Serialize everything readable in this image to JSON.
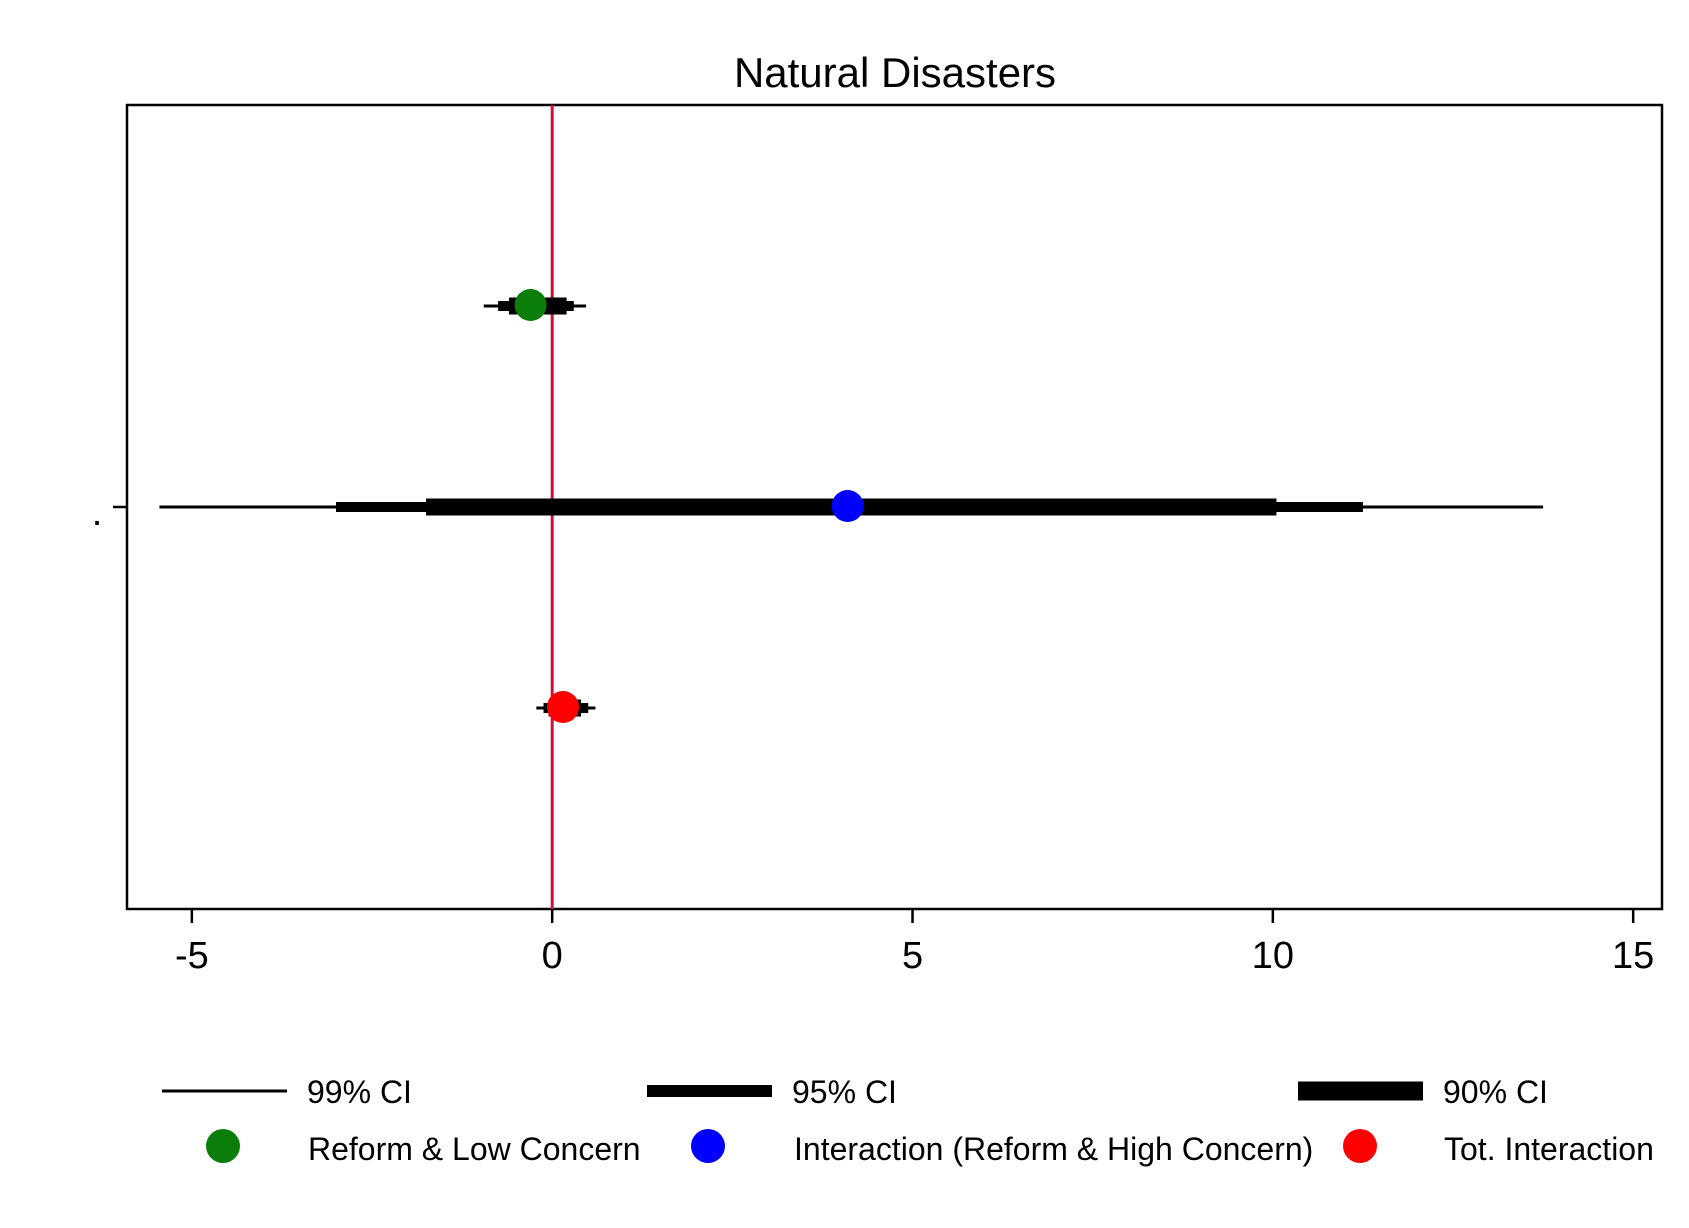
{
  "chart_data": {
    "type": "coefficient-plot",
    "title": "Natural Disasters",
    "xlabel": "",
    "ylabel": "",
    "xlim": [
      -5.9,
      15.4
    ],
    "xticks": [
      -5,
      0,
      5,
      10,
      15
    ],
    "xtick_labels": [
      "-5",
      "0",
      "5",
      "10",
      "15"
    ],
    "ytick_labels": [
      "."
    ],
    "reference_line": {
      "x": 0,
      "color": "#d0103a"
    },
    "grid": false,
    "legend_position": "bottom",
    "legend": {
      "ci": [
        {
          "label": "99% CI",
          "weight": "thin"
        },
        {
          "label": "95% CI",
          "weight": "medium"
        },
        {
          "label": "90% CI",
          "weight": "thick"
        }
      ],
      "markers": [
        {
          "label": "Reform & Low Concern",
          "color": "#0a7d0a"
        },
        {
          "label": "Interaction (Reform & High Concern)",
          "color": "#0000ff"
        },
        {
          "label": "Tot. Interaction",
          "color": "#ff0000"
        }
      ]
    },
    "series": [
      {
        "name": "Reform & Low Concern",
        "estimate": -0.3,
        "ci90": [
          -0.6,
          0.2
        ],
        "ci95": [
          -0.75,
          0.3
        ],
        "ci99": [
          -0.95,
          0.47
        ],
        "color": "#0a7d0a"
      },
      {
        "name": "Interaction (Reform & High Concern)",
        "estimate": 4.1,
        "ci90": [
          -1.75,
          10.05
        ],
        "ci95": [
          -3.0,
          11.25
        ],
        "ci99": [
          -5.45,
          13.75
        ],
        "color": "#0000ff"
      },
      {
        "name": "Tot. Interaction",
        "estimate": 0.15,
        "ci90": [
          -0.05,
          0.4
        ],
        "ci95": [
          -0.12,
          0.5
        ],
        "ci99": [
          -0.22,
          0.6
        ],
        "color": "#ff0000"
      }
    ]
  }
}
